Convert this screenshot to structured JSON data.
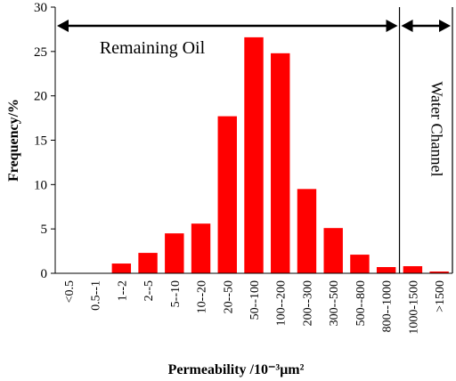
{
  "chart_data": {
    "type": "bar",
    "categories": [
      "<0.5",
      "0.5--1",
      "1--2",
      "2--5",
      "5--10",
      "10--20",
      "20--50",
      "50--100",
      "100--200",
      "200--300",
      "300--500",
      "500--800",
      "800--1000",
      "1000-1500",
      ">1500"
    ],
    "values": [
      0,
      0,
      1.1,
      2.3,
      4.5,
      5.6,
      17.7,
      26.6,
      24.8,
      9.5,
      5.1,
      2.1,
      0.7,
      0.8,
      0.2
    ],
    "xlabel": "Permeability /10⁻³μm²",
    "ylabel": "Frequency/%",
    "ylim": [
      0,
      30
    ],
    "yticks": [
      0,
      5,
      10,
      15,
      20,
      25,
      30
    ],
    "grid": false,
    "bar_color": "#ff0000",
    "regions": [
      {
        "label": "Remaining Oil",
        "from_category": 0,
        "to_category": 12
      },
      {
        "label": "Water Channel",
        "from_category": 13,
        "to_category": 14
      }
    ]
  }
}
